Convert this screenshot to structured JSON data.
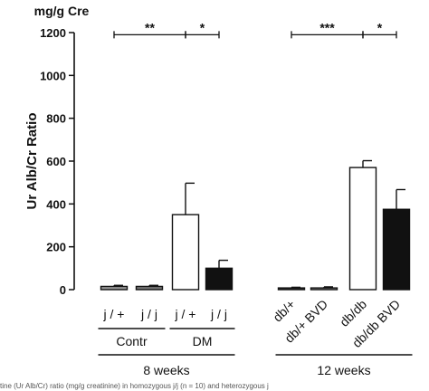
{
  "chart_data": {
    "type": "bar",
    "unit": "mg/g Cre",
    "ylabel": "Ur Alb/Cr Ratio",
    "ylim": [
      0,
      1200
    ],
    "yticks": [
      0,
      200,
      400,
      600,
      800,
      1000,
      1200
    ],
    "grid": false,
    "categories": [
      "j / +",
      "j / j",
      "j / +",
      "j / j",
      "db/+",
      "db/+ BVD",
      "db/db",
      "db/db BVD"
    ],
    "values": [
      15,
      15,
      350,
      100,
      8,
      8,
      570,
      375
    ],
    "errors": [
      5,
      5,
      147,
      37,
      3,
      5,
      32,
      92
    ],
    "fills": [
      "#999999",
      "#777777",
      "#ffffff",
      "#111111",
      "#333333",
      "#999999",
      "#ffffff",
      "#111111"
    ],
    "groups": [
      {
        "label": "Contr",
        "members": [
          0,
          1
        ]
      },
      {
        "label": "DM",
        "members": [
          2,
          3
        ]
      }
    ],
    "periods": [
      {
        "label": "8 weeks",
        "members": [
          0,
          1,
          2,
          3
        ]
      },
      {
        "label": "12 weeks",
        "members": [
          4,
          5,
          6,
          7
        ]
      }
    ],
    "significance": [
      {
        "from": 0,
        "to": 2,
        "label": "**",
        "y": 1190
      },
      {
        "from": 2,
        "to": 3,
        "label": "*",
        "y": 1190
      },
      {
        "from": 4,
        "to": 6,
        "label": "***",
        "y": 1190
      },
      {
        "from": 6,
        "to": 7,
        "label": "*",
        "y": 1190
      }
    ]
  },
  "caption": "tine (Ur Alb/Cr) ratio (mg/g creatinine) in homozygous j/j (n = 10) and heterozygous j"
}
